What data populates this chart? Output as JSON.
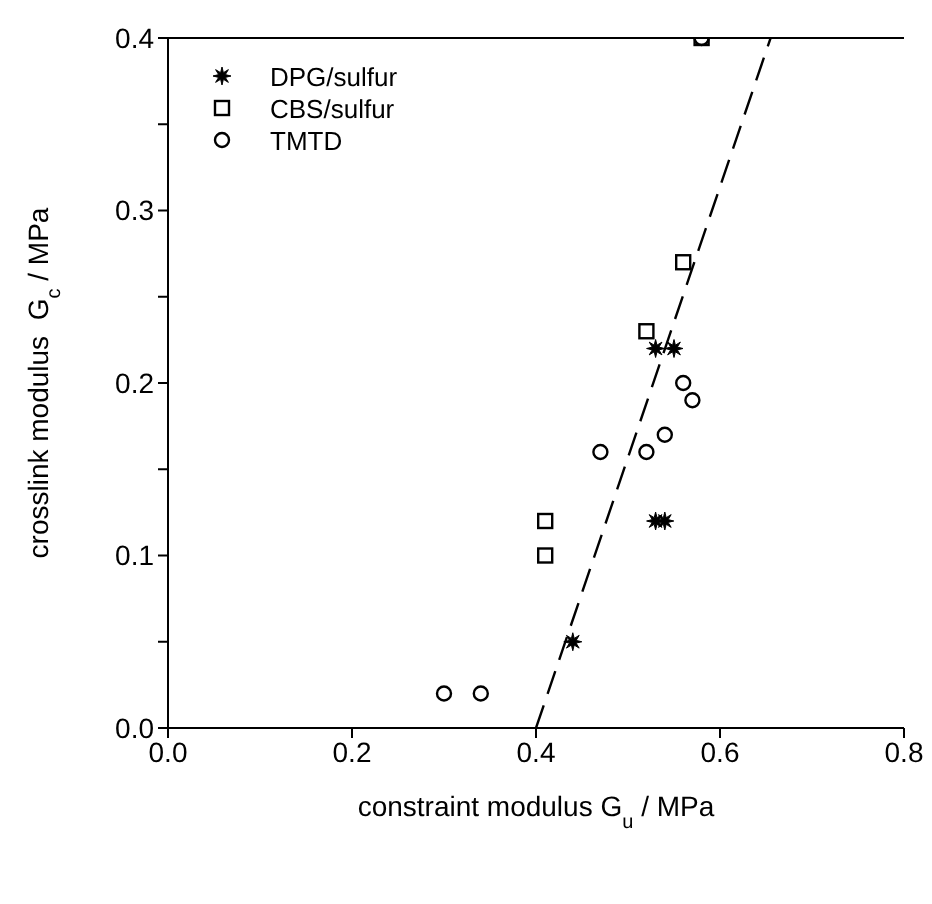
{
  "chart_data": {
    "type": "scatter",
    "xlabel": "constraint modulus G$_{u}$ / MPa",
    "ylabel": "crosslink modulus  G$_{c}$ / MPa",
    "xlim": [
      0,
      0.8
    ],
    "xticks": [
      {
        "value": 0,
        "label": "0.0"
      },
      0.2,
      0.4,
      0.6,
      0.8
    ],
    "ylim": [
      0,
      0.4
    ],
    "yticks": [
      {
        "value": 0,
        "label": "0.0"
      },
      {
        "value": 0.05,
        "label": null
      },
      0.1,
      {
        "value": 0.15,
        "label": null
      },
      0.2,
      {
        "value": 0.25,
        "label": null
      },
      0.3,
      {
        "value": 0.35,
        "label": null
      },
      0.4
    ],
    "grid": false,
    "legend": "top left",
    "series": [
      {
        "name": "DPG/sulfur",
        "color": "#000000",
        "marker": "star",
        "x": [
          0.44,
          0.53,
          0.54,
          0.53,
          0.55
        ],
        "values": [
          0.05,
          0.12,
          0.12,
          0.22,
          0.22
        ]
      },
      {
        "name": "CBS/sulfur",
        "color": "#000000",
        "marker": "square",
        "x": [
          0.41,
          0.41,
          0.52,
          0.56,
          0.58
        ],
        "values": [
          0.1,
          0.12,
          0.23,
          0.27,
          0.4
        ]
      },
      {
        "name": "TMTD",
        "color": "#000000",
        "marker": "circle",
        "x": [
          0.3,
          0.34,
          0.47,
          0.52,
          0.54,
          0.56,
          0.57,
          0.58
        ],
        "values": [
          0.02,
          0.02,
          0.16,
          0.16,
          0.17,
          0.2,
          0.19,
          0.4
        ]
      },
      {
        "type": "line",
        "color": "#000000",
        "line_style": "dashed",
        "x": [
          0.4,
          0.655
        ],
        "values": [
          0,
          0.4
        ]
      }
    ]
  }
}
